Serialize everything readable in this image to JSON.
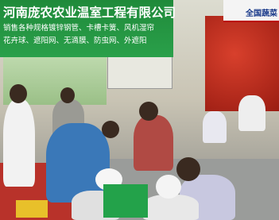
{
  "banner": {
    "title": "河南庞农农业温室工程有限公司",
    "line1": "销售各种规格镀锌钢管、卡槽卡簧、风机湿帘",
    "line2": "花卉球、遮阳网、无滴膜、防虫网、外遮阳"
  },
  "corner_sign": "全国蔬菜"
}
